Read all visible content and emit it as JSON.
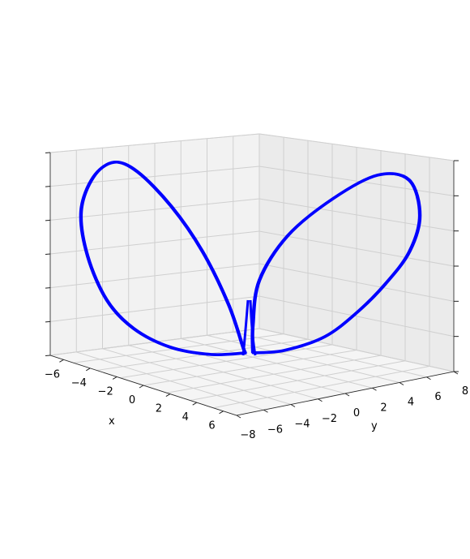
{
  "chart_data": {
    "type": "line",
    "projection": "3d",
    "title": "",
    "xlabel": "x",
    "ylabel": "y",
    "zlabel": "",
    "xlim": [
      -7,
      7
    ],
    "ylim": [
      -8,
      8
    ],
    "x_ticks": [
      "−6",
      "−4",
      "−2",
      "0",
      "2",
      "4",
      "6"
    ],
    "y_ticks": [
      "−8",
      "−6",
      "−4",
      "−2",
      "0",
      "2",
      "4",
      "6",
      "8"
    ],
    "z_ticks_labeled": false,
    "grid": true,
    "legend": "none",
    "series": [
      {
        "color": "#0000ff",
        "description_points": [
          [
            303,
            435
          ],
          [
            300,
            428
          ],
          [
            282,
            375
          ],
          [
            250,
            310
          ],
          [
            212,
            255
          ],
          [
            170,
            212
          ],
          [
            140,
            200
          ],
          [
            115,
            218
          ],
          [
            100,
            260
          ],
          [
            108,
            315
          ],
          [
            132,
            370
          ],
          [
            165,
            405
          ],
          [
            210,
            428
          ],
          [
            260,
            437
          ],
          [
            303,
            435
          ]
        ],
        "right_lobe_points": [
          [
            312,
            435
          ],
          [
            312,
            400
          ],
          [
            320,
            345
          ],
          [
            355,
            290
          ],
          [
            410,
            245
          ],
          [
            465,
            216
          ],
          [
            505,
            222
          ],
          [
            518,
            265
          ],
          [
            505,
            310
          ],
          [
            475,
            350
          ],
          [
            440,
            385
          ],
          [
            400,
            415
          ],
          [
            350,
            432
          ],
          [
            312,
            435
          ]
        ]
      }
    ]
  }
}
